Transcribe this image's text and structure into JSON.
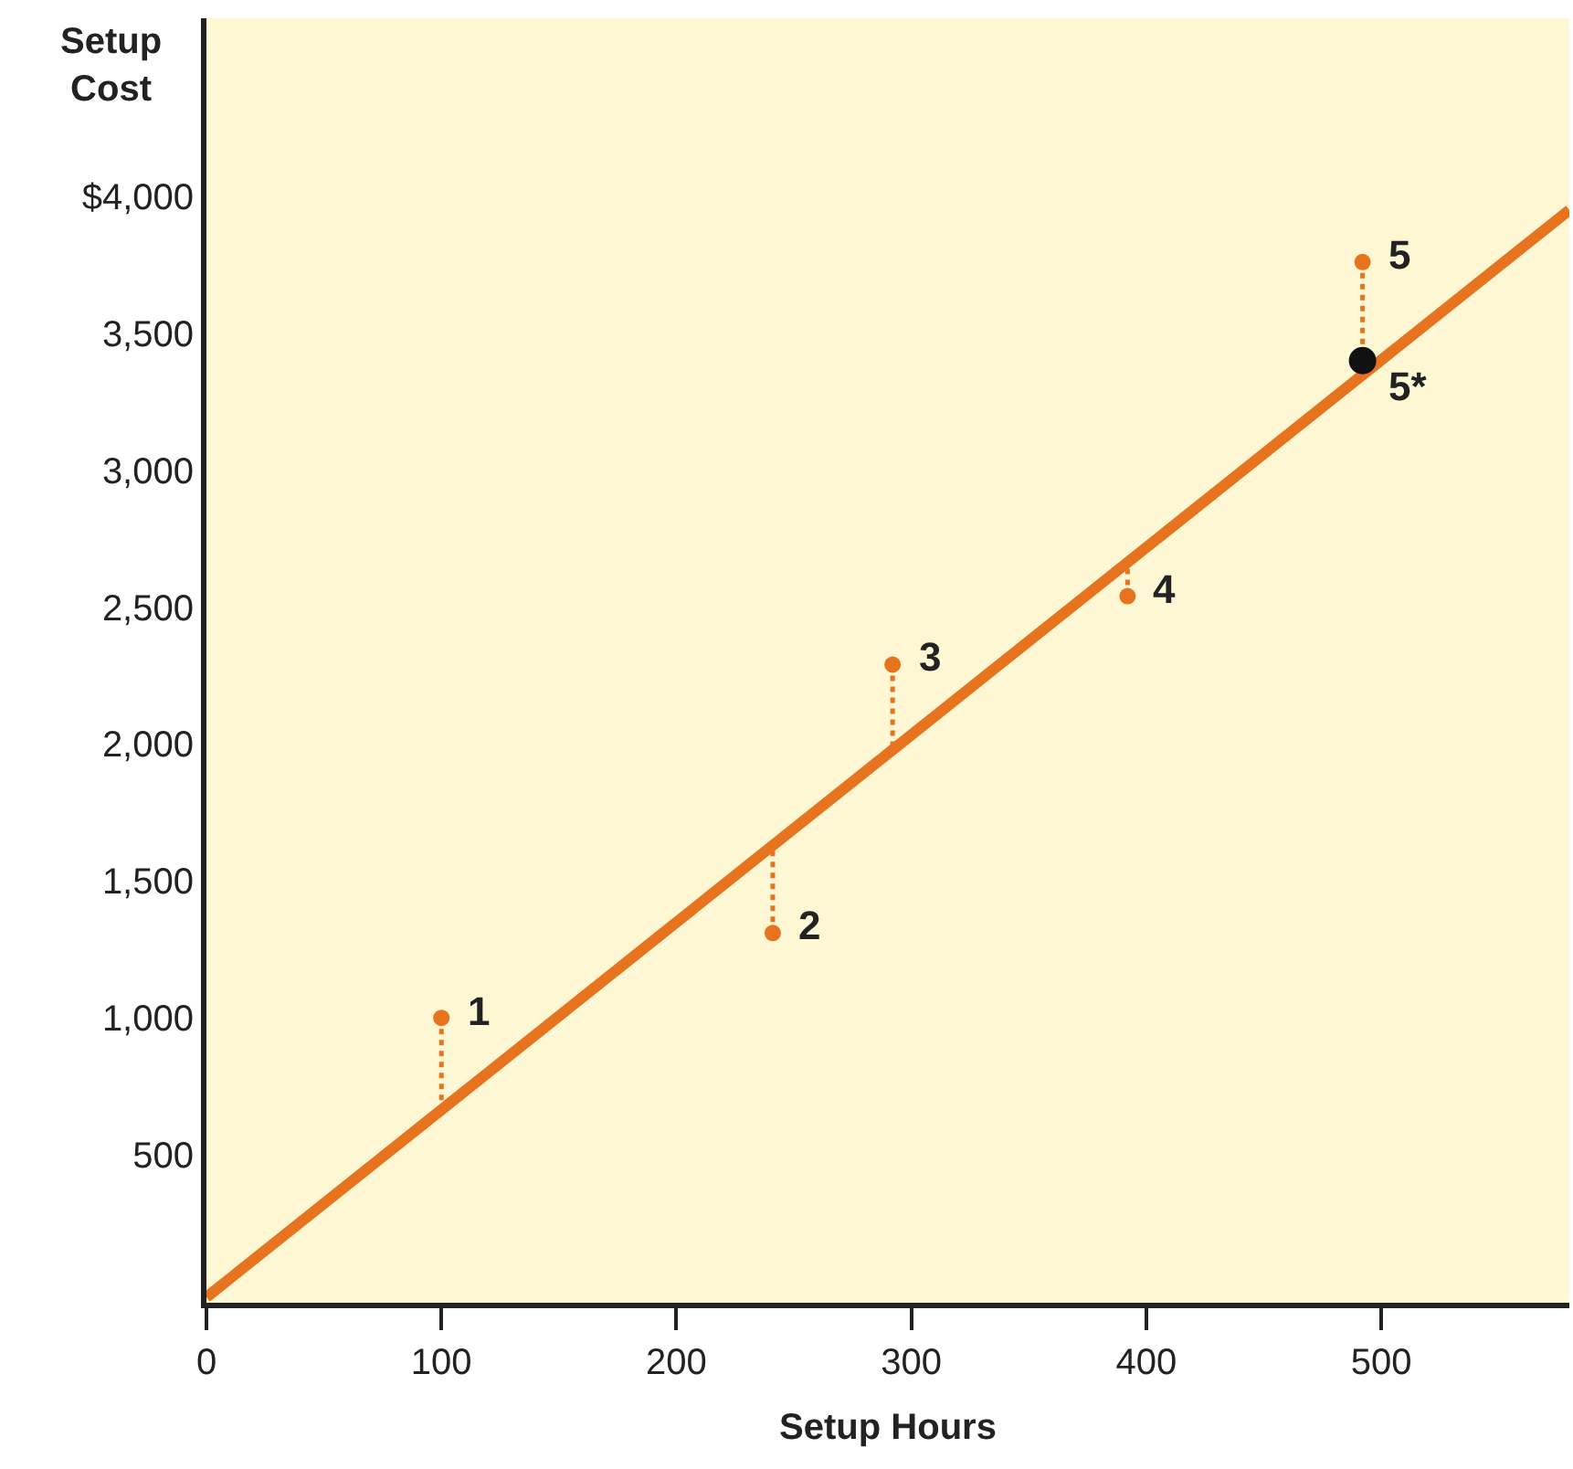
{
  "chart_data": {
    "type": "scatter",
    "xlabel": "Setup Hours",
    "ylabel": "Setup\nCost",
    "xlim": [
      0,
      580
    ],
    "ylim": [
      -40,
      4650
    ],
    "xticks": [
      0,
      100,
      200,
      300,
      400,
      500
    ],
    "yticks": [
      {
        "value": 500,
        "label": "500"
      },
      {
        "value": 1000,
        "label": "1,000"
      },
      {
        "value": 1500,
        "label": "1,500"
      },
      {
        "value": 2000,
        "label": "2,000"
      },
      {
        "value": 2500,
        "label": "2,500"
      },
      {
        "value": 3000,
        "label": "3,000"
      },
      {
        "value": 3500,
        "label": "3,500"
      },
      {
        "value": 4000,
        "label": "$4,000"
      }
    ],
    "grid": false,
    "legend": false,
    "series": [
      {
        "type": "line",
        "color": "#e8731e",
        "x": [
          0,
          580
        ],
        "values": [
          -20,
          3950
        ],
        "marker": "none",
        "line_style": "solid"
      },
      {
        "type": "line",
        "color": "#e8731e",
        "x": [
          100,
          100
        ],
        "values": [
          1000,
          667
        ],
        "marker": "none",
        "line_style": "dotted"
      },
      {
        "type": "line",
        "color": "#e8731e",
        "x": [
          241,
          241
        ],
        "values": [
          1310,
          1636
        ],
        "marker": "none",
        "line_style": "dotted"
      },
      {
        "type": "line",
        "color": "#e8731e",
        "x": [
          292,
          292
        ],
        "values": [
          2290,
          1986
        ],
        "marker": "none",
        "line_style": "dotted"
      },
      {
        "type": "line",
        "color": "#e8731e",
        "x": [
          392,
          392
        ],
        "values": [
          2540,
          2673
        ],
        "marker": "none",
        "line_style": "dotted"
      },
      {
        "type": "line",
        "color": "#e8731e",
        "x": [
          492,
          492
        ],
        "values": [
          3760,
          3400
        ],
        "marker": "none",
        "line_style": "dotted"
      },
      {
        "color": "#e8731e",
        "x": [
          100,
          241,
          292,
          392,
          492
        ],
        "values": [
          1000,
          1310,
          2290,
          2540,
          3760
        ],
        "marker": "circle"
      },
      {
        "color": "#111111",
        "x": [
          492
        ],
        "values": [
          3400
        ],
        "marker": "circle"
      }
    ],
    "annotations": [
      {
        "text": "1",
        "x": 100,
        "y": 1000
      },
      {
        "text": "2",
        "x": 241,
        "y": 1310
      },
      {
        "text": "3",
        "x": 292,
        "y": 2290
      },
      {
        "text": "4",
        "x": 392,
        "y": 2540
      },
      {
        "text": "5",
        "x": 492,
        "y": 3760
      },
      {
        "text": "5*",
        "x": 492,
        "y": 3400
      }
    ]
  }
}
